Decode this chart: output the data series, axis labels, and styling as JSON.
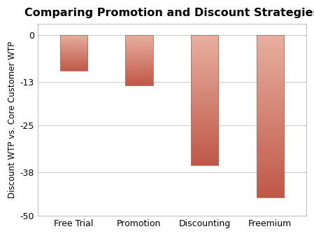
{
  "categories": [
    "Free Trial",
    "Promotion",
    "Discounting",
    "Freemium"
  ],
  "values": [
    -10,
    -14,
    -36,
    -45
  ],
  "title": "Comparing Promotion and Discount Strategies",
  "ylabel": "Discount WTP vs. Core Customer WTP",
  "ylim": [
    -50,
    3
  ],
  "yticks": [
    0,
    -13,
    -25,
    -38,
    -50
  ],
  "bar_color_top": "#e8b0a0",
  "bar_color_bottom": "#c06050",
  "background_color": "#ffffff",
  "grid_color": "#cccccc",
  "title_fontsize": 11.5,
  "label_fontsize": 8.5,
  "tick_fontsize": 9,
  "bar_width": 0.42
}
